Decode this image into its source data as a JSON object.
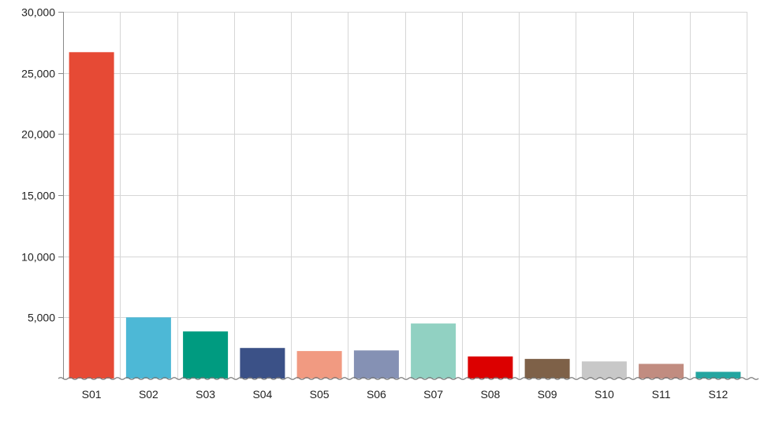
{
  "chart_data": {
    "type": "bar",
    "title": "",
    "xlabel": "",
    "ylabel": "",
    "categories": [
      "S01",
      "S02",
      "S03",
      "S04",
      "S05",
      "S06",
      "S07",
      "S08",
      "S09",
      "S10",
      "S11",
      "S12"
    ],
    "values": [
      26700,
      5000,
      3850,
      2500,
      2250,
      2300,
      4500,
      1800,
      1600,
      1400,
      1200,
      550
    ],
    "bar_colors": [
      "#e64a35",
      "#4db8d6",
      "#009b80",
      "#3b5187",
      "#f19a81",
      "#8591b4",
      "#91d1c2",
      "#dc0000",
      "#7e6148",
      "#c8c8c8",
      "#c18c80",
      "#24a5a0"
    ],
    "ylim": [
      0,
      30000
    ],
    "y_ticks": [
      {
        "value": 5000,
        "label": "5,000"
      },
      {
        "value": 10000,
        "label": "10,000"
      },
      {
        "value": 15000,
        "label": "15,000"
      },
      {
        "value": 20000,
        "label": "20,000"
      },
      {
        "value": 25000,
        "label": "25,000"
      },
      {
        "value": 30000,
        "label": "30,000"
      }
    ],
    "grid": true,
    "legend": "none",
    "axis_break": true
  }
}
